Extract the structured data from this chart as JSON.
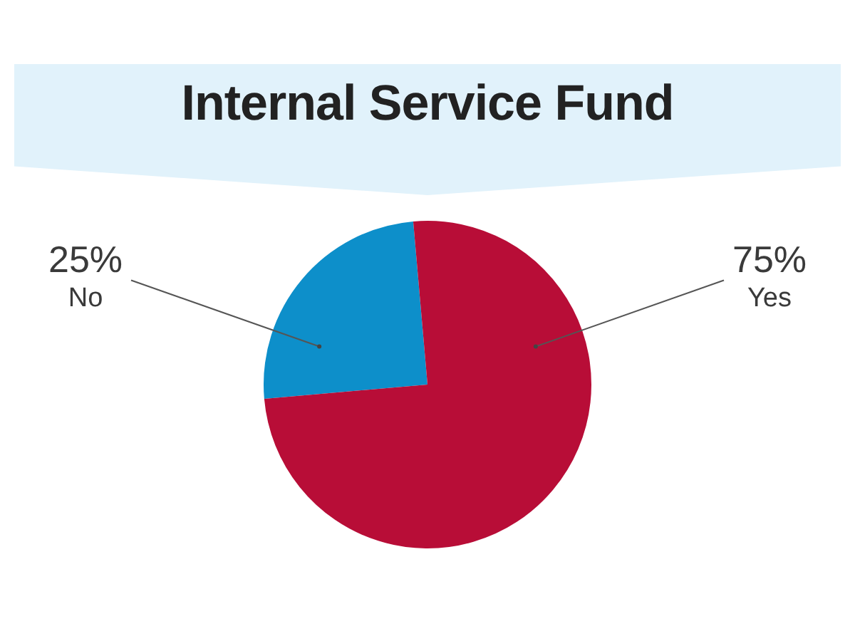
{
  "chart_data": {
    "type": "pie",
    "title": "Internal Service Fund",
    "categories": [
      "No",
      "Yes"
    ],
    "values": [
      25,
      75
    ],
    "colors": [
      "#0d8fca",
      "#b80d37"
    ],
    "value_labels": [
      "25%",
      "75%"
    ]
  }
}
